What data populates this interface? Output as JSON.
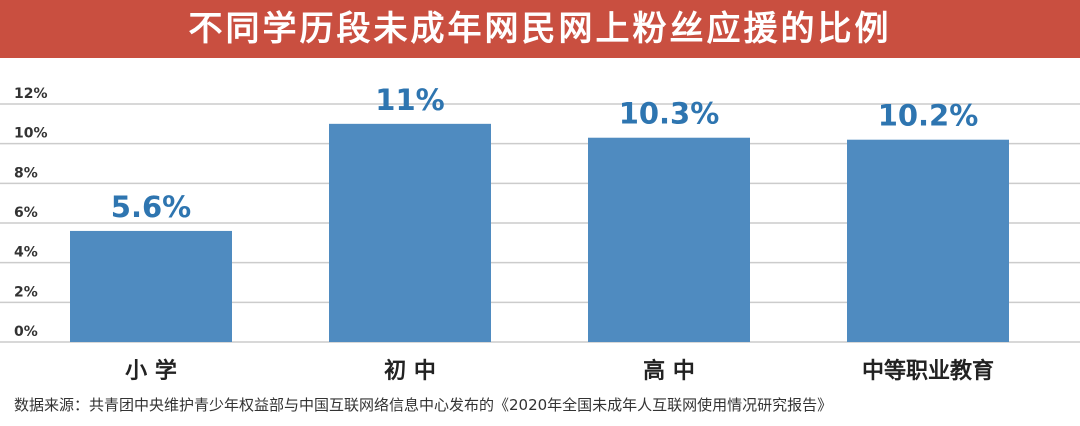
{
  "chart_data": {
    "type": "bar",
    "title": "不同学历段未成年网民网上粉丝应援的比例",
    "categories": [
      "小 学",
      "初 中",
      "高 中",
      "中等职业教育"
    ],
    "values": [
      5.6,
      11,
      10.3,
      10.2
    ],
    "data_labels": [
      "5.6%",
      "11%",
      "10.3%",
      "10.2%"
    ],
    "yticks": [
      "0%",
      "2%",
      "4%",
      "6%",
      "8%",
      "10%",
      "12%"
    ],
    "ylim": [
      0,
      12
    ],
    "grid": true,
    "colors": {
      "bar": "#4f8bc0",
      "label": "#2e75b0",
      "title_bg": "#c94f40"
    }
  },
  "source": "数据来源：共青团中央维护青少年权益部与中国互联网络信息中心发布的《2020年全国未成年人互联网使用情况研究报告》"
}
